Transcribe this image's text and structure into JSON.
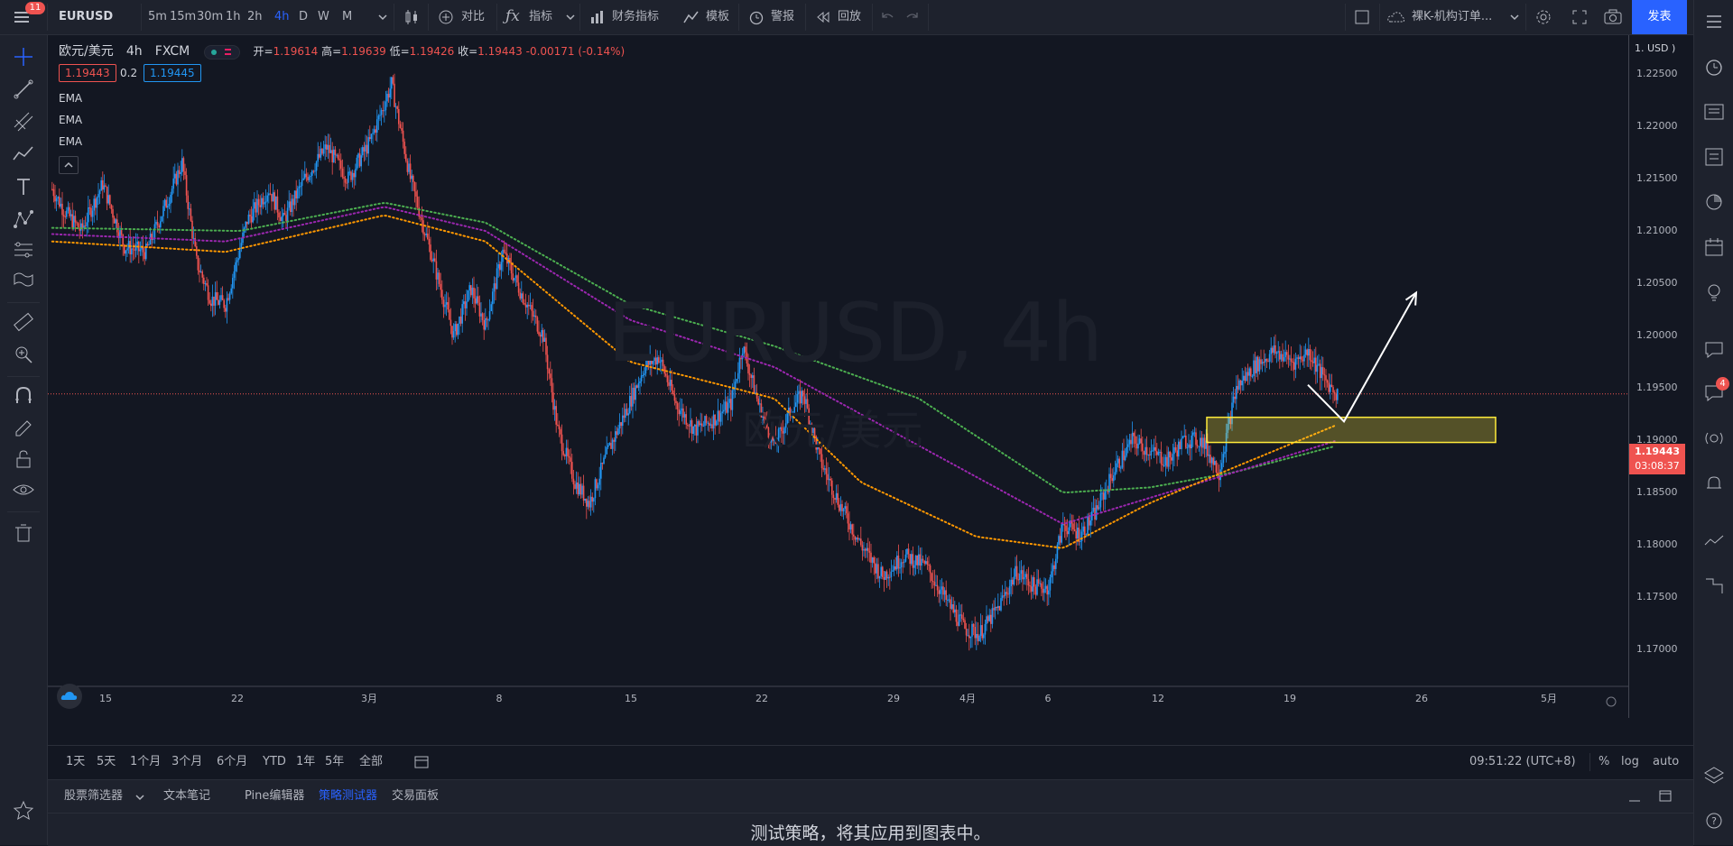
{
  "toolbar": {
    "notif_count": "11",
    "symbol": "EURUSD",
    "timeframes": [
      "5m",
      "15m",
      "30m",
      "1h",
      "2h",
      "4h",
      "D",
      "W",
      "M"
    ],
    "active_timeframe": "4h",
    "compare_label": "对比",
    "indicators_label": "指标",
    "financials_label": "财务指标",
    "templates_label": "模板",
    "alert_label": "警报",
    "replay_label": "回放",
    "layout_name": "裸K-机构订单...",
    "publish_label": "发表"
  },
  "legend": {
    "title": "欧元/美元",
    "interval": "4h",
    "exchange": "FXCM",
    "ohlc": {
      "open_label": "开=",
      "open": "1.19614",
      "high_label": "高=",
      "high": "1.19639",
      "low_label": "低=",
      "low": "1.19426",
      "close_label": "收=",
      "close": "1.19443",
      "change": "-0.00171 (-0.14%)"
    },
    "bid": "1.19443",
    "spread": "0.2",
    "ask": "1.19445",
    "indicators": [
      "EMA",
      "EMA",
      "EMA"
    ]
  },
  "watermark": {
    "line1": "EURUSD, 4h",
    "line2": "欧元/美元"
  },
  "price_scale": {
    "currency": "1. USD )",
    "current_price": "1.19443",
    "countdown": "03:08:37"
  },
  "time_scale": [
    "15",
    "22",
    "3月",
    "8",
    "15",
    "22",
    "29",
    "4月",
    "6",
    "12",
    "19",
    "26",
    "5月"
  ],
  "range_bar": {
    "ranges": [
      "1天",
      "5天",
      "1个月",
      "3个月",
      "6个月",
      "YTD",
      "1年",
      "5年",
      "全部"
    ],
    "clock": "09:51:22 (UTC+8)",
    "pct_label": "%",
    "log_label": "log",
    "auto_label": "auto"
  },
  "bottom_panel": {
    "tabs": [
      "股票筛选器",
      "文本笔记",
      "Pine编辑器",
      "策略测试器",
      "交易面板"
    ],
    "active_tab": "策略测试器",
    "message": "测试策略，将其应用到图表中。"
  },
  "right_bar": {
    "chat_badge": "4"
  },
  "colors": {
    "background": "#131722",
    "up": "#2196f3",
    "down": "#ef5350",
    "ema_fast": "#ff9800",
    "ema_mid": "#9c27b0",
    "ema_slow": "#4caf50",
    "zone_border": "#ffeb3b",
    "accent": "#2962ff"
  },
  "chart_data": {
    "type": "candlestick",
    "symbol": "EURUSD",
    "interval": "4h",
    "x_labels": [
      "15",
      "22",
      "3月",
      "8",
      "15",
      "22",
      "29",
      "4月",
      "6",
      "12",
      "19",
      "26",
      "5月"
    ],
    "y_ticks": [
      "1.22500",
      "1.22000",
      "1.21500",
      "1.21000",
      "1.20500",
      "1.20000",
      "1.19500",
      "1.19000",
      "1.18500",
      "1.18000",
      "1.17500",
      "1.17000"
    ],
    "ylim": [
      1.1665,
      1.2287
    ],
    "price_path": [
      [
        0,
        1.214
      ],
      [
        8,
        1.212
      ],
      [
        20,
        1.21
      ],
      [
        35,
        1.2145
      ],
      [
        50,
        1.2085
      ],
      [
        65,
        1.208
      ],
      [
        80,
        1.213
      ],
      [
        90,
        1.2165
      ],
      [
        100,
        1.207
      ],
      [
        110,
        1.2035
      ],
      [
        120,
        1.203
      ],
      [
        135,
        1.211
      ],
      [
        150,
        1.214
      ],
      [
        160,
        1.211
      ],
      [
        175,
        1.215
      ],
      [
        190,
        1.218
      ],
      [
        205,
        1.215
      ],
      [
        220,
        1.2185
      ],
      [
        235,
        1.224
      ],
      [
        248,
        1.215
      ],
      [
        258,
        1.21
      ],
      [
        268,
        1.205
      ],
      [
        278,
        1.2
      ],
      [
        290,
        1.2045
      ],
      [
        300,
        1.201
      ],
      [
        312,
        1.208
      ],
      [
        325,
        1.204
      ],
      [
        340,
        1.2
      ],
      [
        350,
        1.191
      ],
      [
        362,
        1.186
      ],
      [
        372,
        1.184
      ],
      [
        385,
        1.189
      ],
      [
        398,
        1.193
      ],
      [
        410,
        1.197
      ],
      [
        420,
        1.198
      ],
      [
        432,
        1.1935
      ],
      [
        445,
        1.191
      ],
      [
        458,
        1.192
      ],
      [
        470,
        1.1935
      ],
      [
        478,
        1.199
      ],
      [
        490,
        1.193
      ],
      [
        500,
        1.1895
      ],
      [
        512,
        1.193
      ],
      [
        520,
        1.1945
      ],
      [
        532,
        1.188
      ],
      [
        545,
        1.184
      ],
      [
        560,
        1.18
      ],
      [
        575,
        1.177
      ],
      [
        590,
        1.179
      ],
      [
        605,
        1.178
      ],
      [
        620,
        1.1745
      ],
      [
        632,
        1.172
      ],
      [
        642,
        1.1715
      ],
      [
        655,
        1.174
      ],
      [
        668,
        1.1775
      ],
      [
        680,
        1.176
      ],
      [
        690,
        1.176
      ],
      [
        700,
        1.182
      ],
      [
        712,
        1.181
      ],
      [
        722,
        1.183
      ],
      [
        735,
        1.187
      ],
      [
        748,
        1.19
      ],
      [
        760,
        1.189
      ],
      [
        772,
        1.188
      ],
      [
        784,
        1.19
      ],
      [
        796,
        1.19
      ],
      [
        808,
        1.187
      ],
      [
        820,
        1.195
      ],
      [
        832,
        1.197
      ],
      [
        846,
        1.1985
      ],
      [
        860,
        1.1975
      ],
      [
        870,
        1.1985
      ],
      [
        880,
        1.196
      ],
      [
        890,
        1.1944
      ]
    ],
    "ema_fast": [
      [
        0,
        1.209
      ],
      [
        120,
        1.208
      ],
      [
        230,
        1.2115
      ],
      [
        300,
        1.209
      ],
      [
        400,
        1.1975
      ],
      [
        500,
        1.194
      ],
      [
        560,
        1.186
      ],
      [
        640,
        1.1808
      ],
      [
        700,
        1.1797
      ],
      [
        760,
        1.184
      ],
      [
        820,
        1.1875
      ],
      [
        890,
        1.1915
      ]
    ],
    "ema_mid": [
      [
        0,
        1.2097
      ],
      [
        120,
        1.209
      ],
      [
        230,
        1.2123
      ],
      [
        300,
        1.21
      ],
      [
        400,
        1.2015
      ],
      [
        500,
        1.197
      ],
      [
        580,
        1.191
      ],
      [
        700,
        1.182
      ],
      [
        760,
        1.1845
      ],
      [
        820,
        1.187
      ],
      [
        890,
        1.19
      ]
    ],
    "ema_slow": [
      [
        0,
        1.2103
      ],
      [
        130,
        1.21
      ],
      [
        230,
        1.2127
      ],
      [
        300,
        1.2108
      ],
      [
        400,
        1.203
      ],
      [
        500,
        1.199
      ],
      [
        600,
        1.194
      ],
      [
        700,
        1.185
      ],
      [
        760,
        1.1855
      ],
      [
        820,
        1.187
      ],
      [
        890,
        1.1895
      ]
    ],
    "zone": {
      "y_top": 1.1922,
      "y_bottom": 1.1898,
      "x_start_bar": 800,
      "x_end_bar": 1000
    },
    "arrow": [
      [
        870,
        1.1953
      ],
      [
        895,
        1.1918
      ],
      [
        945,
        1.2041
      ]
    ]
  }
}
